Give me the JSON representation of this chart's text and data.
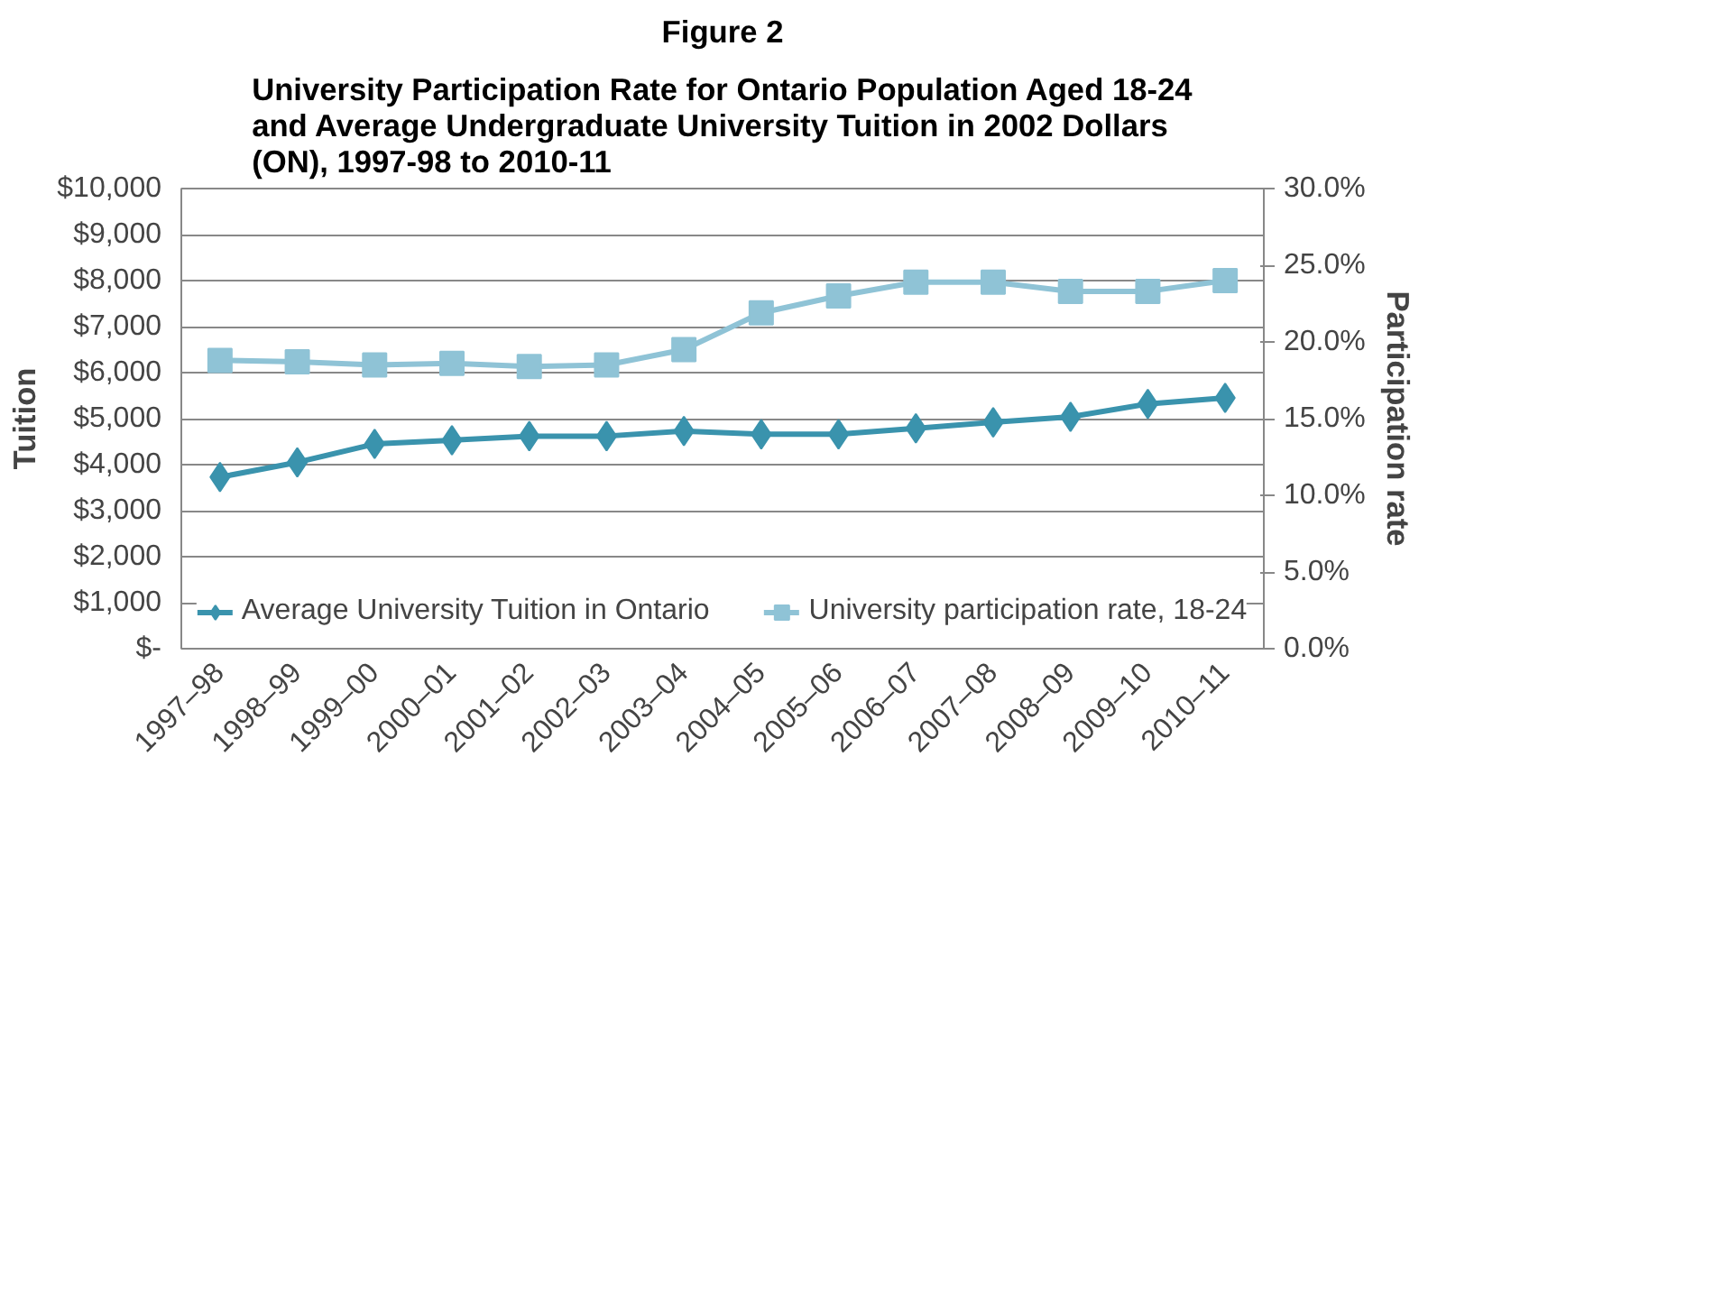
{
  "chart_data": {
    "type": "line",
    "title": "Figure 2",
    "subtitle": "University Participation Rate for Ontario Population Aged 18-24\nand Average Undergraduate University Tuition in 2002 Dollars\n(ON), 1997-98 to 2010-11",
    "ylabel": "Tuition",
    "y2label": "Participation rate",
    "categories": [
      "1997–98",
      "1998–99",
      "1999–00",
      "2000–01",
      "2001–02",
      "2002–03",
      "2003–04",
      "2004–05",
      "2005–06",
      "2006–07",
      "2007–08",
      "2008–09",
      "2009–10",
      "2010–11"
    ],
    "series": [
      {
        "name": "Average University Tuition in Ontario",
        "color": "#3a93ad",
        "marker": "diamond",
        "values": [
          3730,
          4050,
          4450,
          4530,
          4620,
          4620,
          4730,
          4660,
          4660,
          4790,
          4920,
          5040,
          5320,
          5450
        ]
      },
      {
        "name": "University participation rate, 18-24",
        "color": "#8fc3d6",
        "marker": "square",
        "axis": "y2",
        "values": [
          18.8,
          18.7,
          18.5,
          18.6,
          18.4,
          18.5,
          19.5,
          21.9,
          23.0,
          23.9,
          23.9,
          23.3,
          23.3,
          24.0
        ]
      }
    ],
    "ylim": [
      0,
      10000
    ],
    "yticks": [
      {
        "value": 0,
        "label": "$-"
      },
      {
        "value": 1000,
        "label": "$1,000"
      },
      {
        "value": 2000,
        "label": "$2,000"
      },
      {
        "value": 3000,
        "label": "$3,000"
      },
      {
        "value": 4000,
        "label": "$4,000"
      },
      {
        "value": 5000,
        "label": "$5,000"
      },
      {
        "value": 6000,
        "label": "$6,000"
      },
      {
        "value": 7000,
        "label": "$7,000"
      },
      {
        "value": 8000,
        "label": "$8,000"
      },
      {
        "value": 9000,
        "label": "$9,000"
      },
      {
        "value": 10000,
        "label": "$10,000"
      }
    ],
    "y2lim": [
      0,
      30
    ],
    "y2ticks": [
      {
        "value": 0,
        "label": "0.0%"
      },
      {
        "value": 5,
        "label": "5.0%"
      },
      {
        "value": 10,
        "label": "10.0%"
      },
      {
        "value": 15,
        "label": "15.0%"
      },
      {
        "value": 20,
        "label": "20.0%"
      },
      {
        "value": 25,
        "label": "25.0%"
      },
      {
        "value": 30,
        "label": "30.0%"
      }
    ],
    "grid": "y",
    "legend": "bottom",
    "line_style": "solid"
  }
}
